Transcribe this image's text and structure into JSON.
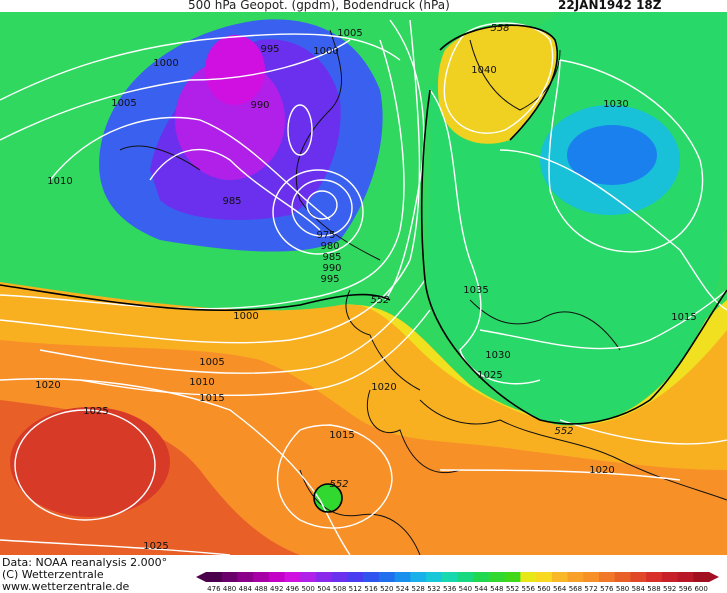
{
  "header": {
    "title": "500 hPa Geopot. (gpdm), Bodendruck (hPa)",
    "date": "22JAN1942 18Z"
  },
  "footer": {
    "data_line": "Data: NOAA reanalysis 2.000°",
    "copyright": "(C) Wetterzentrale",
    "website": "www.wetterzentrale.de"
  },
  "pressure_labels": [
    "1005",
    "1000",
    "995",
    "1000",
    "1005",
    "990",
    "985",
    "975",
    "980",
    "985",
    "990",
    "995",
    "1010",
    "1000",
    "1005",
    "1010",
    "1015",
    "1020",
    "1025",
    "1020",
    "1015",
    "1025",
    "1040",
    "1030",
    "1035",
    "1030",
    "1025",
    "1015",
    "1020"
  ],
  "geopot_labels": [
    "558",
    "552",
    "552",
    "552"
  ],
  "legend": {
    "values": [
      "476",
      "480",
      "484",
      "488",
      "492",
      "496",
      "500",
      "504",
      "508",
      "512",
      "516",
      "520",
      "524",
      "528",
      "532",
      "536",
      "540",
      "544",
      "548",
      "552",
      "556",
      "560",
      "564",
      "568",
      "572",
      "576",
      "580",
      "584",
      "588",
      "592",
      "596",
      "600"
    ],
    "colors": [
      "#4a004a",
      "#6a006a",
      "#8a0088",
      "#a600a6",
      "#c400c8",
      "#d010e0",
      "#b020e8",
      "#8a28ec",
      "#6a30ee",
      "#4a3cf0",
      "#2f55ee",
      "#2070ee",
      "#1a90ee",
      "#1ab0ea",
      "#18c8d8",
      "#18d8b0",
      "#18d880",
      "#20d850",
      "#30d830",
      "#40d818",
      "#e8e818",
      "#f8d820",
      "#f8b828",
      "#f8a028",
      "#f89028",
      "#f07828",
      "#e86028",
      "#e04828",
      "#d83028",
      "#c82028",
      "#b81828",
      "#a01020"
    ]
  }
}
